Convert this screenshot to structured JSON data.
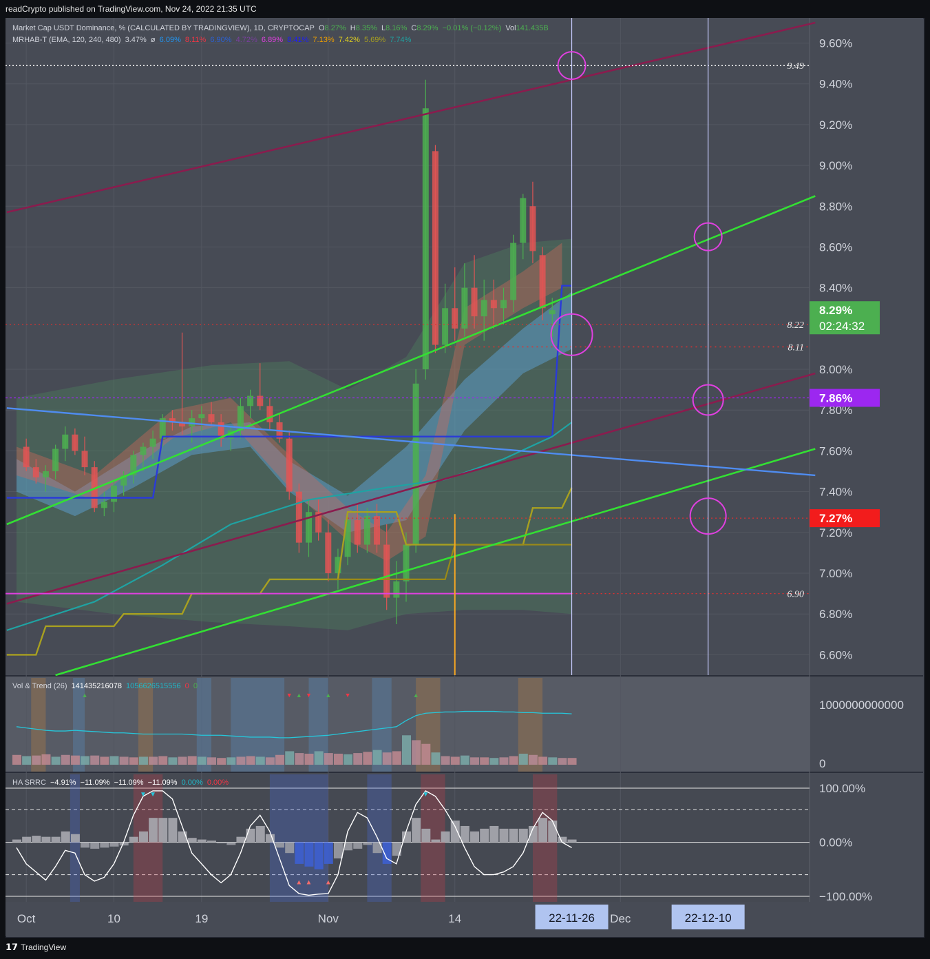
{
  "header": {
    "published": "readCrypto published on TradingView.com, Nov 24, 2022 21:35 UTC"
  },
  "legend_main": {
    "symbol": "Market Cap USDT Dominance, % (CALCULATED BY TRADINGVIEW), 1D, CRYPTOCAP",
    "o_label": "O",
    "o": "8.27%",
    "h_label": "H",
    "h": "8.35%",
    "l_label": "L",
    "l": "8.16%",
    "c_label": "C",
    "c": "8.29%",
    "change": "−0.01% (−0.12%)",
    "vol_label": "Vol",
    "vol": "141.435B"
  },
  "legend_mrhab": {
    "name": "MRHAB-T (EMA, 120, 240, 480)",
    "v1": "3.47%",
    "sep": "ø",
    "v2": "6.09%",
    "v3": "8.11%",
    "v4": "6.90%",
    "v5": "4.72%",
    "v6": "6.89%",
    "v7": "8.41%",
    "v8": "7.13%",
    "v9": "7.42%",
    "v10": "5.69%",
    "v11": "7.74%"
  },
  "legend_vol": {
    "name": "Vol & Trend (26)",
    "v1": "141435216078",
    "v2": "1056626515556",
    "v3": "0",
    "v4": "0"
  },
  "legend_ha": {
    "name": "HA SRRC",
    "v1": "−4.91%",
    "v2": "−11.09%",
    "v3": "−11.09%",
    "v4": "−11.09%",
    "v5": "0.00%",
    "v6": "0.00%"
  },
  "price_axis": {
    "ticks": [
      "9.60%",
      "9.40%",
      "9.20%",
      "9.00%",
      "8.80%",
      "8.60%",
      "8.40%",
      "8.00%",
      "7.80%",
      "7.60%",
      "7.40%",
      "7.20%",
      "7.00%",
      "6.80%",
      "6.60%"
    ],
    "tick_values": [
      9.6,
      9.4,
      9.2,
      9.0,
      8.8,
      8.6,
      8.4,
      8.0,
      7.8,
      7.6,
      7.4,
      7.2,
      7.0,
      6.8,
      6.6
    ]
  },
  "levels": [
    {
      "label": "9.49",
      "value": 9.49
    },
    {
      "label": "8.22",
      "value": 8.22
    },
    {
      "label": "8.11",
      "value": 8.11
    },
    {
      "label": "6.90",
      "value": 6.9
    }
  ],
  "price_badges": [
    {
      "value": 8.29,
      "text": "8.29%",
      "sub": "02:24:32",
      "color": "#4caf50"
    },
    {
      "value": 7.86,
      "text": "7.86%",
      "color": "#9c27f0"
    },
    {
      "value": 7.27,
      "text": "7.27%",
      "color": "#f21c1c"
    }
  ],
  "vol_axis": {
    "top": "1000000000000",
    "bottom": "0"
  },
  "ha_axis": {
    "ticks": [
      "100.00%",
      "0.00%",
      "−100.00%"
    ],
    "tick_values": [
      100,
      0,
      -100
    ]
  },
  "time_axis": {
    "labels": [
      {
        "text": "Oct",
        "date": "2022-10-01"
      },
      {
        "text": "10",
        "date": "2022-10-10"
      },
      {
        "text": "19",
        "date": "2022-10-19"
      },
      {
        "text": "Nov",
        "date": "2022-11-01"
      },
      {
        "text": "14",
        "date": "2022-11-14"
      },
      {
        "text": "Dec",
        "date": "2022-12-01"
      }
    ],
    "highlighted": [
      {
        "text": "22-11-26",
        "date": "2022-11-26"
      },
      {
        "text": "22-12-10",
        "date": "2022-12-10"
      }
    ]
  },
  "footer": {
    "brand": "TradingView",
    "logo": "tv-logo-icon"
  },
  "colors": {
    "up": "#4caf50",
    "down": "#e05555",
    "channel": "#8a1c4e",
    "green_line": "#33e033",
    "blue_line": "#4f8cf0",
    "magenta": "#e040e0",
    "olive": "#a8a020",
    "teal": "#1fa3a3"
  },
  "chart_data": {
    "type": "candlestick",
    "x_unit": "date",
    "x_range": [
      "2022-09-30",
      "2022-12-15"
    ],
    "ylim": [
      6.5,
      9.72
    ],
    "candles": [
      {
        "d": "2022-10-01",
        "o": 7.62,
        "h": 7.66,
        "l": 7.5,
        "c": 7.52
      },
      {
        "d": "2022-10-02",
        "o": 7.52,
        "h": 7.56,
        "l": 7.44,
        "c": 7.47
      },
      {
        "d": "2022-10-03",
        "o": 7.47,
        "h": 7.53,
        "l": 7.4,
        "c": 7.5
      },
      {
        "d": "2022-10-04",
        "o": 7.5,
        "h": 7.63,
        "l": 7.46,
        "c": 7.61
      },
      {
        "d": "2022-10-05",
        "o": 7.61,
        "h": 7.72,
        "l": 7.55,
        "c": 7.68
      },
      {
        "d": "2022-10-06",
        "o": 7.68,
        "h": 7.71,
        "l": 7.58,
        "c": 7.6
      },
      {
        "d": "2022-10-07",
        "o": 7.6,
        "h": 7.67,
        "l": 7.48,
        "c": 7.52
      },
      {
        "d": "2022-10-08",
        "o": 7.52,
        "h": 7.55,
        "l": 7.3,
        "c": 7.32
      },
      {
        "d": "2022-10-09",
        "o": 7.32,
        "h": 7.4,
        "l": 7.28,
        "c": 7.35
      },
      {
        "d": "2022-10-10",
        "o": 7.35,
        "h": 7.46,
        "l": 7.3,
        "c": 7.43
      },
      {
        "d": "2022-10-11",
        "o": 7.43,
        "h": 7.5,
        "l": 7.38,
        "c": 7.48
      },
      {
        "d": "2022-10-12",
        "o": 7.48,
        "h": 7.6,
        "l": 7.44,
        "c": 7.58
      },
      {
        "d": "2022-10-13",
        "o": 7.58,
        "h": 7.64,
        "l": 7.5,
        "c": 7.62
      },
      {
        "d": "2022-10-14",
        "o": 7.62,
        "h": 7.7,
        "l": 7.56,
        "c": 7.66
      },
      {
        "d": "2022-10-15",
        "o": 7.66,
        "h": 7.78,
        "l": 7.62,
        "c": 7.76
      },
      {
        "d": "2022-10-16",
        "o": 7.76,
        "h": 7.8,
        "l": 7.7,
        "c": 7.74
      },
      {
        "d": "2022-10-17",
        "o": 7.74,
        "h": 8.18,
        "l": 7.68,
        "c": 7.72
      },
      {
        "d": "2022-10-18",
        "o": 7.72,
        "h": 7.8,
        "l": 7.64,
        "c": 7.76
      },
      {
        "d": "2022-10-19",
        "o": 7.76,
        "h": 7.82,
        "l": 7.7,
        "c": 7.78
      },
      {
        "d": "2022-10-20",
        "o": 7.78,
        "h": 7.84,
        "l": 7.72,
        "c": 7.74
      },
      {
        "d": "2022-10-21",
        "o": 7.74,
        "h": 7.78,
        "l": 7.62,
        "c": 7.66
      },
      {
        "d": "2022-10-22",
        "o": 7.66,
        "h": 7.72,
        "l": 7.6,
        "c": 7.7
      },
      {
        "d": "2022-10-23",
        "o": 7.7,
        "h": 7.86,
        "l": 7.66,
        "c": 7.82
      },
      {
        "d": "2022-10-24",
        "o": 7.82,
        "h": 7.9,
        "l": 7.76,
        "c": 7.87
      },
      {
        "d": "2022-10-25",
        "o": 7.87,
        "h": 8.03,
        "l": 7.8,
        "c": 7.82
      },
      {
        "d": "2022-10-26",
        "o": 7.82,
        "h": 7.86,
        "l": 7.7,
        "c": 7.74
      },
      {
        "d": "2022-10-27",
        "o": 7.74,
        "h": 7.78,
        "l": 7.64,
        "c": 7.66
      },
      {
        "d": "2022-10-28",
        "o": 7.66,
        "h": 7.7,
        "l": 7.36,
        "c": 7.4
      },
      {
        "d": "2022-10-29",
        "o": 7.4,
        "h": 7.44,
        "l": 7.1,
        "c": 7.15
      },
      {
        "d": "2022-10-30",
        "o": 7.15,
        "h": 7.36,
        "l": 7.08,
        "c": 7.3
      },
      {
        "d": "2022-10-31",
        "o": 7.3,
        "h": 7.36,
        "l": 7.16,
        "c": 7.2
      },
      {
        "d": "2022-11-01",
        "o": 7.2,
        "h": 7.26,
        "l": 6.96,
        "c": 7.0
      },
      {
        "d": "2022-11-02",
        "o": 7.0,
        "h": 7.12,
        "l": 6.92,
        "c": 7.08
      },
      {
        "d": "2022-11-03",
        "o": 7.08,
        "h": 7.3,
        "l": 7.04,
        "c": 7.26
      },
      {
        "d": "2022-11-04",
        "o": 7.26,
        "h": 7.34,
        "l": 7.1,
        "c": 7.14
      },
      {
        "d": "2022-11-05",
        "o": 7.14,
        "h": 7.32,
        "l": 7.1,
        "c": 7.28
      },
      {
        "d": "2022-11-06",
        "o": 7.28,
        "h": 7.34,
        "l": 7.1,
        "c": 7.14
      },
      {
        "d": "2022-11-07",
        "o": 7.14,
        "h": 7.24,
        "l": 6.82,
        "c": 6.88
      },
      {
        "d": "2022-11-08",
        "o": 6.88,
        "h": 7.06,
        "l": 6.75,
        "c": 6.96
      },
      {
        "d": "2022-11-09",
        "o": 6.96,
        "h": 7.2,
        "l": 6.86,
        "c": 7.14
      },
      {
        "d": "2022-11-10",
        "o": 7.14,
        "h": 8.0,
        "l": 7.1,
        "c": 7.93
      },
      {
        "d": "2022-11-11",
        "o": 8.0,
        "h": 9.42,
        "l": 7.95,
        "c": 9.28
      },
      {
        "d": "2022-11-12",
        "o": 9.07,
        "h": 9.1,
        "l": 8.08,
        "c": 8.12
      },
      {
        "d": "2022-11-13",
        "o": 8.12,
        "h": 8.42,
        "l": 8.08,
        "c": 8.3
      },
      {
        "d": "2022-11-14",
        "o": 8.3,
        "h": 8.5,
        "l": 8.14,
        "c": 8.2
      },
      {
        "d": "2022-11-15",
        "o": 8.2,
        "h": 8.52,
        "l": 8.16,
        "c": 8.4
      },
      {
        "d": "2022-11-16",
        "o": 8.4,
        "h": 8.56,
        "l": 8.2,
        "c": 8.26
      },
      {
        "d": "2022-11-17",
        "o": 8.26,
        "h": 8.44,
        "l": 8.14,
        "c": 8.34
      },
      {
        "d": "2022-11-18",
        "o": 8.34,
        "h": 8.44,
        "l": 8.2,
        "c": 8.3
      },
      {
        "d": "2022-11-19",
        "o": 8.3,
        "h": 8.4,
        "l": 8.22,
        "c": 8.34
      },
      {
        "d": "2022-11-20",
        "o": 8.34,
        "h": 8.66,
        "l": 8.28,
        "c": 8.62
      },
      {
        "d": "2022-11-21",
        "o": 8.62,
        "h": 8.86,
        "l": 8.54,
        "c": 8.84
      },
      {
        "d": "2022-11-22",
        "o": 8.8,
        "h": 8.92,
        "l": 8.52,
        "c": 8.58
      },
      {
        "d": "2022-11-23",
        "o": 8.56,
        "h": 8.6,
        "l": 8.24,
        "c": 8.3
      },
      {
        "d": "2022-11-24",
        "o": 8.27,
        "h": 8.35,
        "l": 8.16,
        "c": 8.29
      }
    ]
  }
}
